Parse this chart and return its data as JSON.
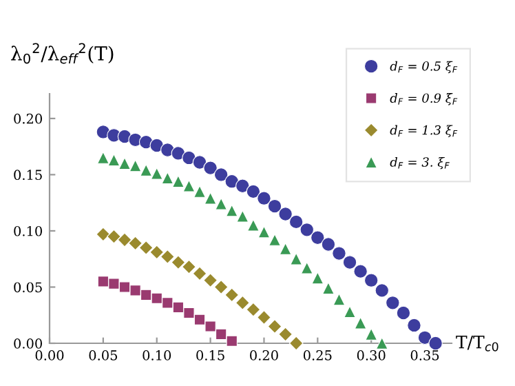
{
  "chart_data": {
    "type": "scatter",
    "xlabel": "T/T$_{c0}$",
    "ylabel": "λ$_{0}$$^{2}$/λ$_{eff}$$^{2}$(T)",
    "xlim": [
      0,
      0.375
    ],
    "ylim": [
      0,
      0.222
    ],
    "xticks": [
      {
        "value": 0,
        "label": "0.00"
      },
      0.05,
      {
        "value": 0.1,
        "label": "0.10"
      },
      0.15,
      {
        "value": 0.2,
        "label": "0.20"
      },
      0.25,
      {
        "value": 0.3,
        "label": "0.30"
      },
      0.35
    ],
    "yticks": [
      {
        "value": 0,
        "label": "0.00"
      },
      0.05,
      {
        "value": 0.1,
        "label": "0.10"
      },
      0.15,
      {
        "value": 0.2,
        "label": "0.20"
      }
    ],
    "grid": false,
    "legend": "top right",
    "series": [
      {
        "name": "d$_{F}$ = 0.5 ξ$_{F}$",
        "color": "#3d3d9e",
        "marker": "circle",
        "x": [
          0.05,
          0.06,
          0.07,
          0.08,
          0.09,
          0.1,
          0.11,
          0.12,
          0.13,
          0.14,
          0.15,
          0.16,
          0.17,
          0.18,
          0.19,
          0.2,
          0.21,
          0.22,
          0.23,
          0.24,
          0.25,
          0.26,
          0.27,
          0.28,
          0.29,
          0.3,
          0.31,
          0.32,
          0.33,
          0.34,
          0.35,
          0.36
        ],
        "values": [
          0.188,
          0.185,
          0.184,
          0.181,
          0.179,
          0.176,
          0.172,
          0.169,
          0.165,
          0.161,
          0.156,
          0.15,
          0.144,
          0.14,
          0.135,
          0.129,
          0.122,
          0.115,
          0.108,
          0.101,
          0.094,
          0.088,
          0.08,
          0.072,
          0.064,
          0.056,
          0.047,
          0.036,
          0.027,
          0.016,
          0.005,
          0.0
        ]
      },
      {
        "name": "d$_{F}$ = 0.9 ξ$_{F}$",
        "color": "#9a3a70",
        "marker": "square",
        "x": [
          0.05,
          0.06,
          0.07,
          0.08,
          0.09,
          0.1,
          0.11,
          0.12,
          0.13,
          0.14,
          0.15,
          0.16,
          0.17
        ],
        "values": [
          0.055,
          0.053,
          0.05,
          0.047,
          0.043,
          0.04,
          0.036,
          0.032,
          0.027,
          0.021,
          0.015,
          0.008,
          0.002
        ]
      },
      {
        "name": "d$_{F}$ = 1.3 ξ$_{F}$",
        "color": "#9a8a2e",
        "marker": "diamond",
        "x": [
          0.05,
          0.06,
          0.07,
          0.08,
          0.09,
          0.1,
          0.11,
          0.12,
          0.13,
          0.14,
          0.15,
          0.16,
          0.17,
          0.18,
          0.19,
          0.2,
          0.21,
          0.22,
          0.23
        ],
        "values": [
          0.097,
          0.095,
          0.092,
          0.089,
          0.085,
          0.081,
          0.077,
          0.072,
          0.068,
          0.062,
          0.056,
          0.05,
          0.043,
          0.036,
          0.03,
          0.023,
          0.015,
          0.008,
          0.0
        ]
      },
      {
        "name": "d$_{F}$ = 3. ξ$_{F}$",
        "color": "#3a9a55",
        "marker": "triangle",
        "x": [
          0.05,
          0.06,
          0.07,
          0.08,
          0.09,
          0.1,
          0.11,
          0.12,
          0.13,
          0.14,
          0.15,
          0.16,
          0.17,
          0.18,
          0.19,
          0.2,
          0.21,
          0.22,
          0.23,
          0.24,
          0.25,
          0.26,
          0.27,
          0.28,
          0.29,
          0.3,
          0.31
        ],
        "values": [
          0.165,
          0.163,
          0.16,
          0.158,
          0.154,
          0.151,
          0.147,
          0.144,
          0.14,
          0.135,
          0.129,
          0.124,
          0.118,
          0.113,
          0.105,
          0.099,
          0.092,
          0.084,
          0.075,
          0.067,
          0.058,
          0.049,
          0.039,
          0.028,
          0.018,
          0.008,
          0.0
        ]
      }
    ]
  }
}
